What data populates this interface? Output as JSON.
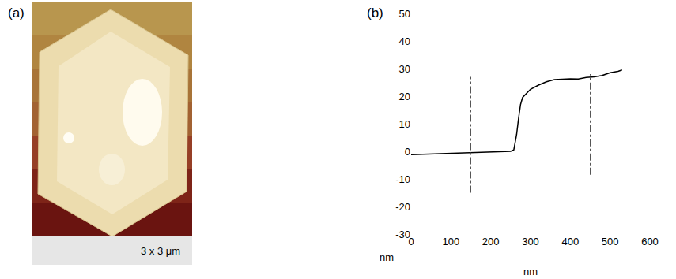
{
  "panel_a": {
    "label": "(a)",
    "scale_caption": "3 x 3 μm"
  },
  "chart_data": {
    "type": "line",
    "panel_label": "(b)",
    "x_label": "nm",
    "y_label": "nm",
    "x": [
      0,
      50,
      100,
      150,
      200,
      250,
      258,
      265,
      270,
      275,
      280,
      290,
      300,
      320,
      340,
      360,
      380,
      400,
      420,
      440,
      460,
      480,
      500,
      520,
      530
    ],
    "values": [
      -1.2,
      -1,
      -0.8,
      -0.6,
      -0.4,
      0,
      0.5,
      6,
      12,
      17,
      19.5,
      21,
      22.5,
      24,
      25.2,
      26,
      26.2,
      26.3,
      26.2,
      26.8,
      27,
      27.5,
      28.5,
      29,
      29.5
    ],
    "color": "#000000",
    "reference_lines": [
      {
        "x": 150,
        "y_from": -15,
        "y_to": 27
      },
      {
        "x": 450,
        "y_from": -8.5,
        "y_to": 28
      }
    ],
    "xlim": [
      0,
      600
    ],
    "xticks": [
      0,
      100,
      200,
      300,
      400,
      500,
      600
    ],
    "ylim": [
      -30,
      50
    ],
    "yticks": [
      -30,
      -20,
      -10,
      0,
      10,
      20,
      30,
      40,
      50
    ],
    "grid": false
  }
}
